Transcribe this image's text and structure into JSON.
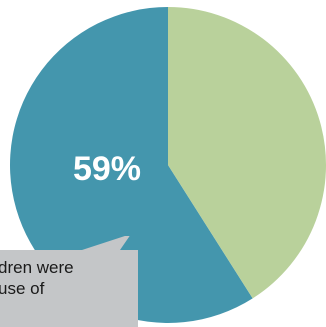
{
  "chart_data": {
    "type": "pie",
    "slices": [
      {
        "value": 59,
        "label": "59%",
        "color": "#4496ad"
      },
      {
        "value": 41,
        "label": "",
        "color": "#b9d19b"
      }
    ],
    "center_label": "59%"
  },
  "callout": {
    "lines": [
      "dren were",
      "use of"
    ],
    "color": "#c4c6c8"
  }
}
